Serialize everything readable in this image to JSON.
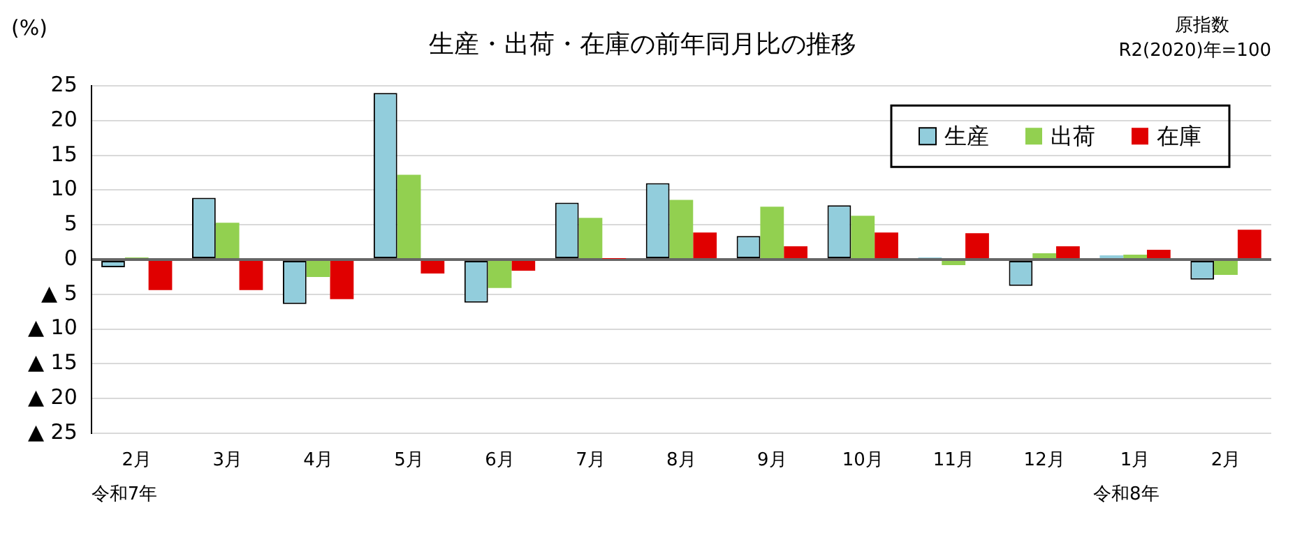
{
  "chart_data": {
    "type": "bar",
    "title": "生産・出荷・在庫の前年同月比の推移",
    "ylabel": "(%)",
    "annotations": [
      "原指数",
      "R2(2020)年=100",
      "令和7年",
      "令和8年"
    ],
    "categories": [
      "2月",
      "3月",
      "4月",
      "5月",
      "6月",
      "7月",
      "8月",
      "9月",
      "10月",
      "11月",
      "12月",
      "1月",
      "2月"
    ],
    "series": [
      {
        "name": "生産",
        "color": "#92cddc",
        "values": [
          -1.1,
          8.9,
          -6.4,
          24.0,
          -6.2,
          8.2,
          11.0,
          3.4,
          7.8,
          0.3,
          -3.8,
          0.6,
          -2.9
        ]
      },
      {
        "name": "出荷",
        "color": "#92d050",
        "values": [
          0.3,
          5.3,
          -2.5,
          12.2,
          -4.1,
          6.0,
          8.6,
          7.6,
          6.3,
          -0.8,
          0.9,
          0.7,
          -2.2
        ]
      },
      {
        "name": "在庫",
        "color": "#e00000",
        "values": [
          -4.4,
          -4.4,
          -5.7,
          -2.0,
          -1.6,
          0.1,
          3.9,
          1.9,
          3.9,
          3.8,
          1.9,
          1.4,
          4.3
        ]
      }
    ],
    "ylim": [
      -25,
      25
    ],
    "yticks": [
      {
        "value": -25,
        "label": "▲ 25"
      },
      {
        "value": -20,
        "label": "▲ 20"
      },
      {
        "value": -15,
        "label": "▲ 15"
      },
      {
        "value": -10,
        "label": "▲ 10"
      },
      {
        "value": -5,
        "label": "▲ 5"
      },
      0,
      5,
      10,
      15,
      20,
      25
    ],
    "grid": "y",
    "legend": "top right"
  }
}
